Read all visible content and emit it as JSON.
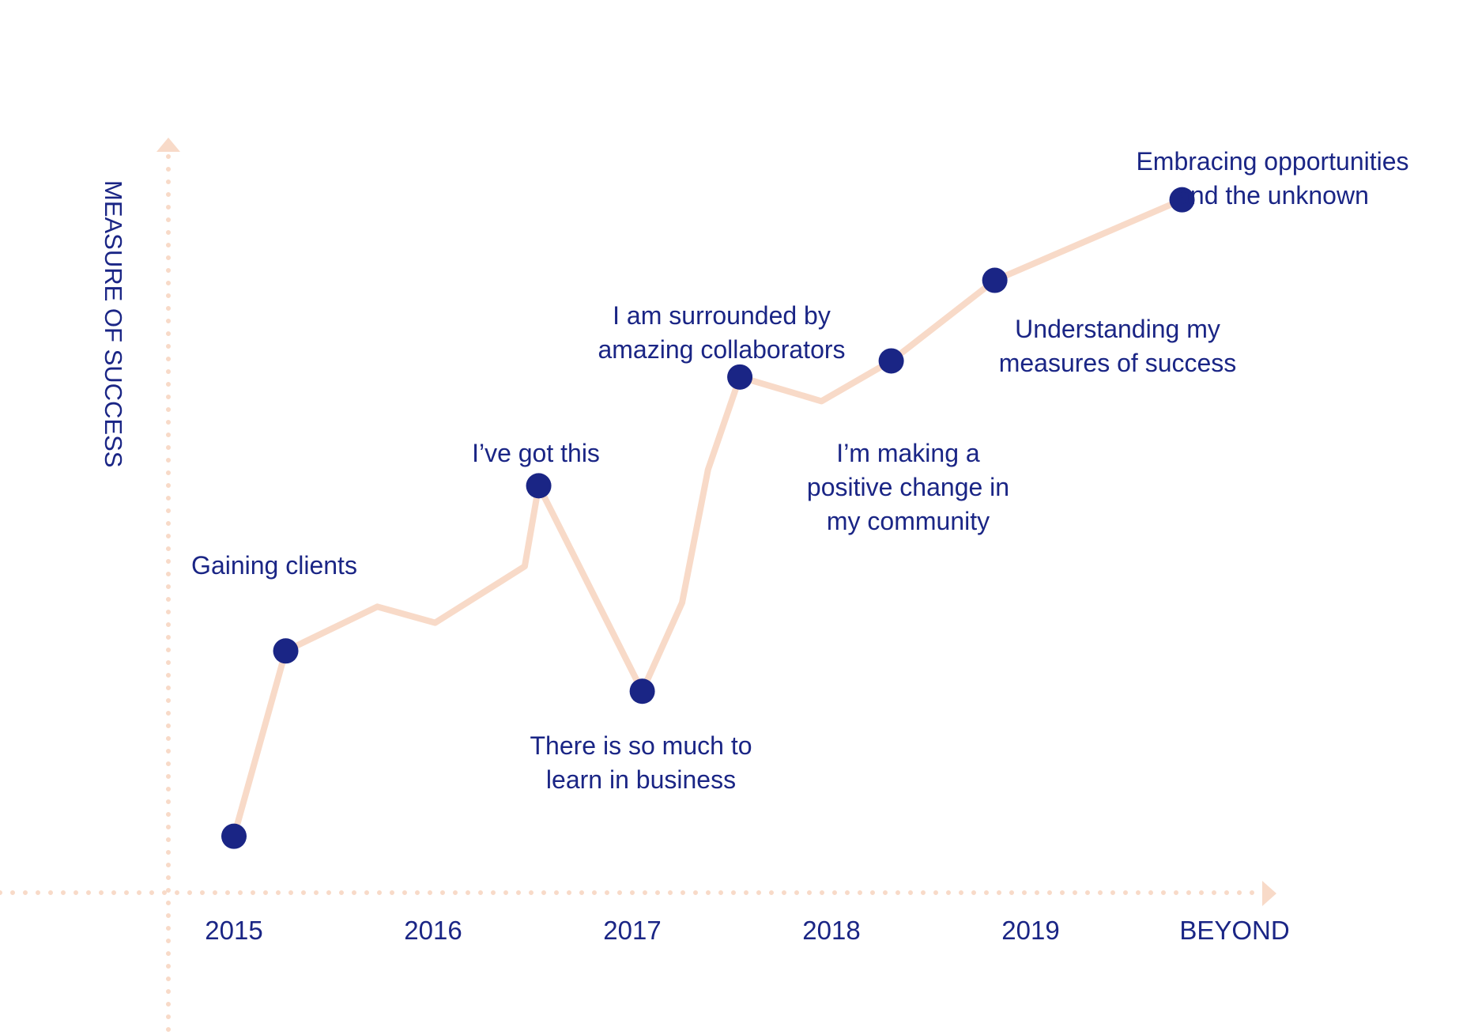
{
  "chart_data": {
    "type": "line",
    "title": "",
    "ylabel": "MEASURE OF SUCCESS",
    "xlabel": "",
    "x_ticks": [
      "2015",
      "2016",
      "2017",
      "2018",
      "2019",
      "BEYOND"
    ],
    "xlim": [
      -0.35,
      5.15
    ],
    "ylim": [
      0,
      10
    ],
    "grid": false,
    "colors": {
      "line": "#f8dac8",
      "point": "#1a2585",
      "axis": "#f8dac8",
      "text": "#1a2585"
    },
    "line_path": [
      {
        "x": 0.0,
        "y": 0.7
      },
      {
        "x": 0.26,
        "y": 3.0
      },
      {
        "x": 0.72,
        "y": 3.55
      },
      {
        "x": 1.01,
        "y": 3.35
      },
      {
        "x": 1.46,
        "y": 4.05
      },
      {
        "x": 1.53,
        "y": 5.05
      },
      {
        "x": 2.05,
        "y": 2.5
      },
      {
        "x": 2.25,
        "y": 3.6
      },
      {
        "x": 2.38,
        "y": 5.25
      },
      {
        "x": 2.54,
        "y": 6.4
      },
      {
        "x": 2.95,
        "y": 6.1
      },
      {
        "x": 3.3,
        "y": 6.6
      },
      {
        "x": 3.82,
        "y": 7.6
      },
      {
        "x": 4.76,
        "y": 8.6
      }
    ],
    "milestones": [
      {
        "x": 0.0,
        "y": 0.7,
        "label_lines": []
      },
      {
        "x": 0.26,
        "y": 3.0,
        "label_lines": [
          "Gaining clients"
        ]
      },
      {
        "x": 1.53,
        "y": 5.05,
        "label_lines": [
          "I’ve got this"
        ]
      },
      {
        "x": 2.05,
        "y": 2.5,
        "label_lines": [
          "There is so much to",
          "learn in business"
        ]
      },
      {
        "x": 2.54,
        "y": 6.4,
        "label_lines": [
          "I am surrounded by",
          "amazing collaborators"
        ]
      },
      {
        "x": 3.3,
        "y": 6.6,
        "label_lines": [
          "I’m making a",
          "positive change in",
          "my community"
        ]
      },
      {
        "x": 3.82,
        "y": 7.6,
        "label_lines": [
          "Understanding my",
          "measures of success"
        ]
      },
      {
        "x": 4.76,
        "y": 8.6,
        "label_lines": [
          "Embracing opportunities",
          "and the unknown"
        ]
      }
    ]
  }
}
